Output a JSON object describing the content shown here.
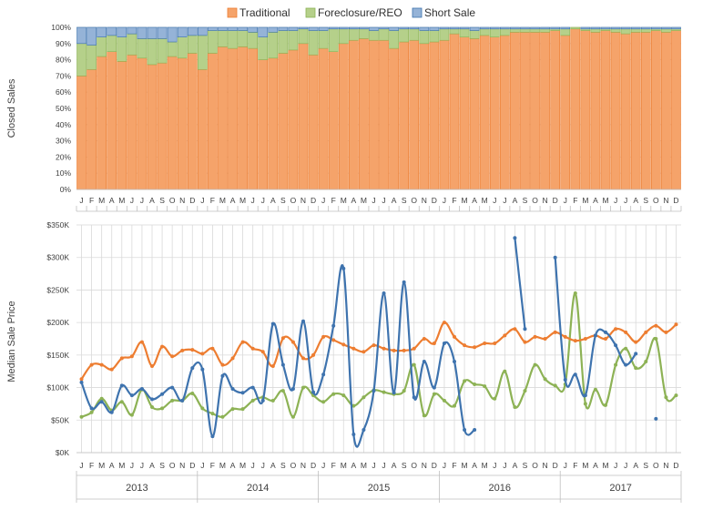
{
  "legend": [
    "Traditional",
    "Foreclosure/REO",
    "Short Sale"
  ],
  "colors": {
    "traditional": "#F5A36A",
    "traditional_line": "#ED7D31",
    "reo": "#B5D08A",
    "reo_line": "#8DB255",
    "short": "#95B3D7",
    "short_line": "#3E73AE"
  },
  "month_letters": [
    "J",
    "F",
    "M",
    "A",
    "M",
    "J",
    "J",
    "A",
    "S",
    "O",
    "N",
    "D"
  ],
  "years": [
    "2013",
    "2014",
    "2015",
    "2016",
    "2017"
  ],
  "chart_data": [
    {
      "type": "bar",
      "stacked": true,
      "percent": true,
      "ylabel": "Closed Sales",
      "ylim": [
        0,
        100
      ],
      "yticks": [
        "0%",
        "10%",
        "20%",
        "30%",
        "40%",
        "50%",
        "60%",
        "70%",
        "80%",
        "90%",
        "100%"
      ],
      "legend_position": "top",
      "series": [
        {
          "name": "Traditional",
          "values": [
            70,
            74,
            82,
            85,
            79,
            83,
            81,
            77,
            78,
            82,
            81,
            84,
            74,
            84,
            88,
            87,
            88,
            87,
            80,
            81,
            84,
            86,
            90,
            83,
            87,
            85,
            90,
            92,
            93,
            92,
            92,
            87,
            91,
            92,
            90,
            91,
            92,
            96,
            94,
            93,
            95,
            94,
            95,
            97,
            97,
            97,
            97,
            98,
            95,
            99,
            98,
            97,
            98,
            97,
            96,
            97,
            97,
            98,
            97,
            98
          ]
        },
        {
          "name": "Foreclosure/REO",
          "values": [
            20,
            15,
            12,
            10,
            15,
            13,
            12,
            16,
            15,
            9,
            13,
            11,
            21,
            14,
            10,
            11,
            10,
            10,
            14,
            16,
            14,
            12,
            9,
            15,
            11,
            14,
            9,
            7,
            6,
            6,
            7,
            11,
            8,
            7,
            8,
            7,
            7,
            3,
            5,
            5,
            4,
            5,
            4,
            2,
            2,
            2,
            2,
            1,
            4,
            1,
            1,
            2,
            1,
            2,
            3,
            2,
            2,
            1,
            2,
            1
          ]
        },
        {
          "name": "Short Sale",
          "values": [
            10,
            11,
            6,
            5,
            6,
            4,
            7,
            7,
            7,
            9,
            6,
            5,
            5,
            2,
            2,
            2,
            2,
            3,
            6,
            3,
            2,
            2,
            1,
            2,
            2,
            1,
            1,
            1,
            1,
            2,
            1,
            2,
            1,
            1,
            2,
            2,
            1,
            1,
            1,
            2,
            1,
            1,
            1,
            1,
            1,
            1,
            1,
            1,
            1,
            0,
            1,
            1,
            1,
            1,
            1,
            1,
            1,
            1,
            1,
            1
          ]
        }
      ]
    },
    {
      "type": "line",
      "smooth": true,
      "markers": true,
      "ylabel": "Median Sale Price",
      "ylim": [
        0,
        350
      ],
      "yticks": [
        "$0K",
        "$50K",
        "$100K",
        "$150K",
        "$200K",
        "$250K",
        "$300K",
        "$350K"
      ],
      "x_group_labels": [
        "2013",
        "2014",
        "2015",
        "2016",
        "2017"
      ],
      "series": [
        {
          "name": "Traditional",
          "values": [
            113,
            135,
            135,
            128,
            145,
            148,
            170,
            133,
            163,
            148,
            157,
            158,
            152,
            160,
            135,
            145,
            170,
            160,
            155,
            133,
            176,
            170,
            145,
            150,
            178,
            173,
            166,
            160,
            155,
            165,
            160,
            157,
            157,
            160,
            175,
            168,
            200,
            178,
            165,
            162,
            168,
            168,
            180,
            190,
            170,
            178,
            175,
            185,
            178,
            172,
            175,
            180,
            175,
            190,
            185,
            170,
            185,
            195,
            185,
            197
          ]
        },
        {
          "name": "Foreclosure/REO",
          "values": [
            55,
            62,
            83,
            65,
            78,
            58,
            97,
            70,
            68,
            80,
            80,
            91,
            68,
            60,
            55,
            67,
            67,
            80,
            85,
            80,
            95,
            55,
            100,
            88,
            78,
            90,
            88,
            72,
            85,
            96,
            93,
            90,
            95,
            135,
            57,
            90,
            80,
            72,
            110,
            105,
            102,
            83,
            125,
            70,
            95,
            135,
            113,
            103,
            105,
            245,
            75,
            97,
            73,
            135,
            160,
            130,
            140,
            175,
            85,
            88
          ]
        },
        {
          "name": "Short Sale",
          "values": [
            108,
            68,
            78,
            62,
            103,
            88,
            98,
            82,
            90,
            100,
            80,
            130,
            128,
            25,
            118,
            98,
            92,
            100,
            80,
            198,
            135,
            98,
            202,
            93,
            120,
            195,
            283,
            28,
            35,
            95,
            245,
            92,
            262,
            85,
            140,
            100,
            168,
            140,
            35,
            35,
            null,
            null,
            null,
            330,
            190,
            null,
            null,
            300,
            112,
            120,
            88,
            180,
            185,
            165,
            135,
            152,
            null,
            52,
            null,
            null
          ]
        }
      ]
    }
  ]
}
